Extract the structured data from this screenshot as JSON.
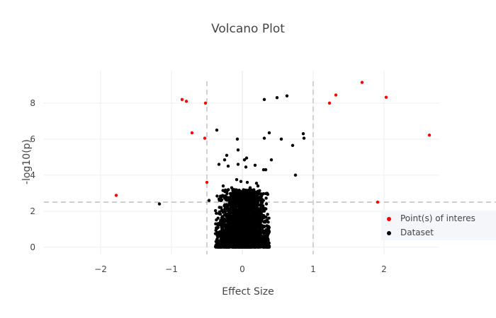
{
  "chart_data": {
    "type": "scatter",
    "title": "Volcano Plot",
    "xlabel": "Effect Size",
    "ylabel": "-log10(p)",
    "xlim": [
      -2.8,
      2.78
    ],
    "ylim": [
      -0.4,
      9.8
    ],
    "x_ticks": [
      -2,
      -1,
      0,
      1,
      2
    ],
    "y_ticks": [
      0,
      2,
      4,
      6,
      8
    ],
    "x_tick_labels": [
      "−2",
      "−1",
      "0",
      "1",
      "2"
    ],
    "y_tick_labels": [
      "0",
      "2",
      "4",
      "6",
      "8"
    ],
    "grid": true,
    "thresholds": {
      "x": [
        -0.5,
        1
      ],
      "y": 2.5
    },
    "legend": {
      "placement": "right",
      "entries": [
        "Point(s) of interes",
        "Dataset"
      ]
    },
    "series": [
      {
        "name": "Point(s) of interes",
        "color": "#ff0000",
        "points": [
          [
            -1.78,
            2.88
          ],
          [
            -0.85,
            8.2
          ],
          [
            -0.79,
            8.1
          ],
          [
            -0.71,
            6.35
          ],
          [
            -0.52,
            8.0
          ],
          [
            -0.53,
            6.05
          ],
          [
            -0.5,
            3.6
          ],
          [
            1.23,
            8.0
          ],
          [
            1.32,
            8.45
          ],
          [
            1.69,
            9.15
          ],
          [
            2.03,
            8.32
          ],
          [
            2.64,
            6.22
          ],
          [
            1.91,
            2.5
          ]
        ]
      },
      {
        "name": "Dataset",
        "color": "#000000",
        "points": [
          [
            -1.17,
            2.4
          ],
          [
            -0.47,
            2.6
          ],
          [
            -0.36,
            6.5
          ],
          [
            -0.07,
            6.0
          ],
          [
            -0.06,
            5.4
          ],
          [
            0.31,
            8.2
          ],
          [
            0.49,
            8.3
          ],
          [
            0.63,
            8.4
          ],
          [
            0.38,
            6.35
          ],
          [
            0.31,
            6.05
          ],
          [
            0.55,
            6.0
          ],
          [
            0.71,
            5.65
          ],
          [
            0.86,
            6.3
          ],
          [
            0.87,
            6.05
          ],
          [
            0.75,
            4.0
          ],
          [
            -0.22,
            5.1
          ],
          [
            -0.25,
            4.85
          ],
          [
            -0.33,
            4.6
          ],
          [
            -0.2,
            4.5
          ],
          [
            -0.06,
            4.6
          ],
          [
            0.03,
            4.85
          ],
          [
            0.06,
            4.95
          ],
          [
            0.05,
            4.45
          ],
          [
            0.18,
            4.55
          ],
          [
            0.41,
            4.85
          ],
          [
            0.33,
            4.3
          ],
          [
            0.3,
            4.3
          ],
          [
            -0.08,
            3.75
          ],
          [
            -0.02,
            3.65
          ],
          [
            0.07,
            3.6
          ],
          [
            0.2,
            3.55
          ],
          [
            0.22,
            3.4
          ],
          [
            -0.27,
            3.4
          ],
          [
            -0.15,
            3.3
          ],
          [
            -0.12,
            3.2
          ],
          [
            0.11,
            3.3
          ],
          [
            0.16,
            3.15
          ],
          [
            0.25,
            2.8
          ],
          [
            -0.29,
            2.8
          ],
          [
            0.28,
            2.3
          ],
          [
            0.34,
            2.4
          ],
          [
            -0.3,
            2.2
          ],
          [
            0.03,
            3.05
          ]
        ],
        "cluster": {
          "center_x": 0.02,
          "x_spread": 0.12,
          "y_min": 0,
          "y_max": 3.2,
          "count": 2600
        }
      }
    ]
  }
}
